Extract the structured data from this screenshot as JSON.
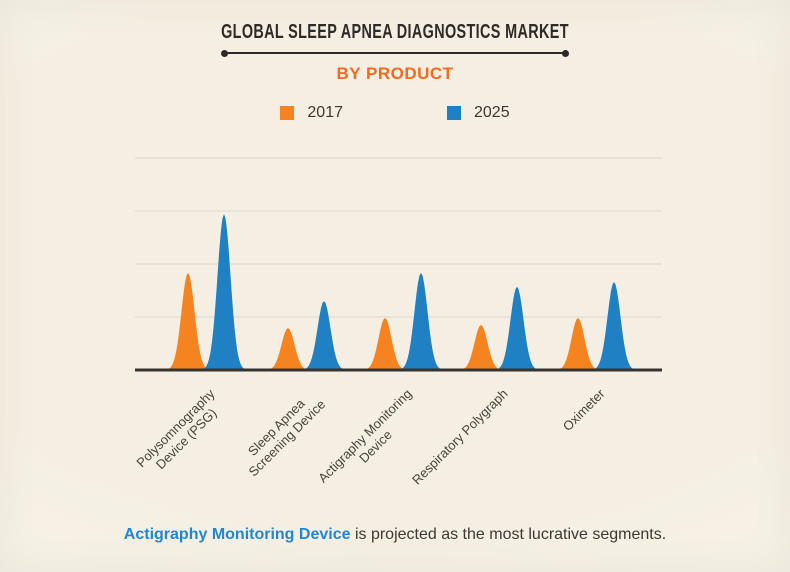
{
  "header": {
    "title": "GLOBAL SLEEP APNEA DIAGNOSTICS MARKET",
    "subtitle": "BY PRODUCT"
  },
  "legend": {
    "items": [
      {
        "label": "2017",
        "color": "#f5831f"
      },
      {
        "label": "2025",
        "color": "#1f80c4"
      }
    ]
  },
  "chart_data": {
    "type": "area",
    "shape": "gaussian-peaks",
    "title": "GLOBAL SLEEP APNEA DIAGNOSTICS MARKET",
    "subtitle": "BY PRODUCT",
    "categories": [
      "Polysomnography Device (PSG)",
      "Sleep Apnea Screening Device",
      "Actigraphy Monitoring Device",
      "Respiratory Polygraph",
      "Oximeter"
    ],
    "categories_lines": [
      [
        "Polysomnography",
        "Device (PSG)"
      ],
      [
        "Sleep Apnea",
        "Screening Device"
      ],
      [
        "Actigraphy Monitoring",
        "Device"
      ],
      [
        "Respiratory Polygraph"
      ],
      [
        "Oximeter"
      ]
    ],
    "series": [
      {
        "name": "2017",
        "color": "#f5831f",
        "values": [
          1.83,
          0.79,
          0.98,
          0.85,
          0.98
        ]
      },
      {
        "name": "2025",
        "color": "#1f80c4",
        "values": [
          2.94,
          1.3,
          1.83,
          1.57,
          1.66
        ]
      }
    ],
    "xlabel": "",
    "ylabel": "",
    "ylim": [
      0,
      4.2
    ],
    "yticks_shown": false,
    "gridlines": [
      1,
      2,
      3,
      4
    ],
    "legend_position": "top-center",
    "grid": true
  },
  "footer": {
    "highlight": "Actigraphy Monitoring Device",
    "rest": " is projected as the most lucrative segments.",
    "highlight_color": "#1f87d4"
  },
  "colors": {
    "background": "#f6f1e6",
    "title_text": "#2d2b27",
    "subtitle_text": "#f36a1e",
    "axis": "#36342f",
    "gridline": "#dcd7c8",
    "axis_label_text": "#45433c",
    "footer_text": "#3b3933"
  }
}
